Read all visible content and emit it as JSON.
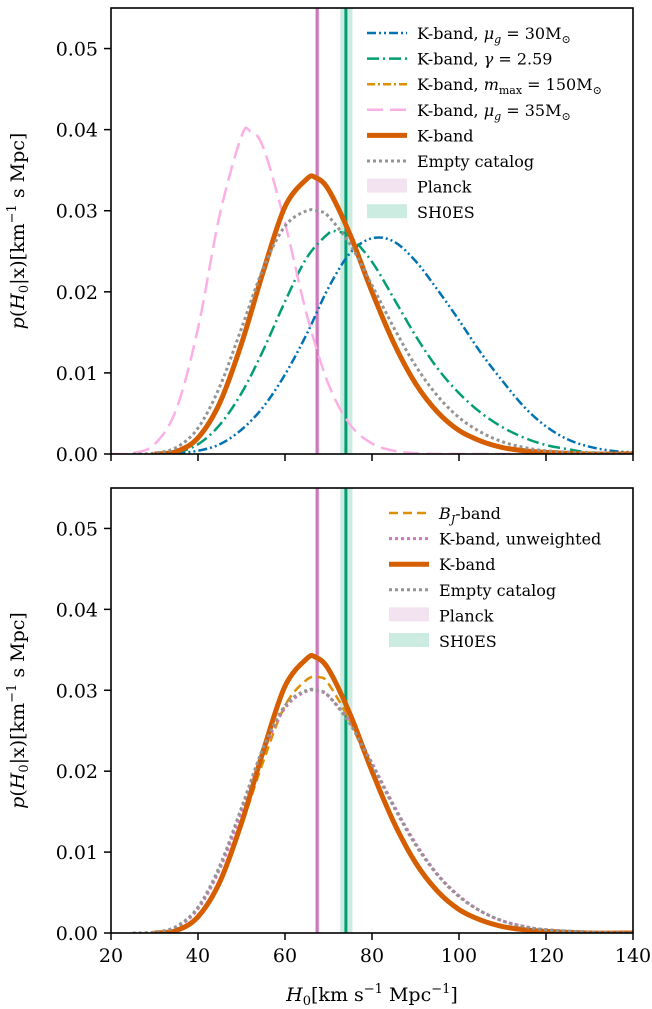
{
  "chart_data": [
    {
      "type": "line",
      "ylabel": "p(H₀|x)[km⁻¹ s Mpc]",
      "xlabel": "",
      "xlim": [
        20,
        140
      ],
      "ylim": [
        0,
        0.055
      ],
      "xticks": [
        20,
        40,
        60,
        80,
        100,
        120,
        140
      ],
      "show_xtick_labels": false,
      "yticks": [
        "0.00",
        "0.01",
        "0.02",
        "0.03",
        "0.04",
        "0.05"
      ],
      "grid": false,
      "legend_position": "top-right",
      "bands": [
        {
          "name": "Planck",
          "low": 66.9,
          "high": 67.9,
          "center": 67.4,
          "color": "#cc78bc",
          "band_color": "#f3e2ef"
        },
        {
          "name": "SH0ES",
          "low": 72.7,
          "high": 75.5,
          "center": 74.0,
          "color": "#029e73",
          "band_color": "#cdece1"
        }
      ],
      "series": [
        {
          "name": "K-band, μg = 30M⊙",
          "color": "#0173b2",
          "dash": "9 3 2 3 2 3",
          "width": 2.5,
          "x": [
            30,
            35,
            40,
            45,
            50,
            55,
            60,
            65,
            70,
            75,
            80,
            85,
            90,
            95,
            100,
            105,
            110,
            115,
            120,
            125,
            130,
            135,
            140
          ],
          "y": [
            0,
            0.0001,
            0.0004,
            0.0012,
            0.003,
            0.0058,
            0.0098,
            0.0148,
            0.0205,
            0.0248,
            0.0266,
            0.0262,
            0.0238,
            0.0203,
            0.0165,
            0.0125,
            0.009,
            0.0058,
            0.0034,
            0.0018,
            0.0009,
            0.0004,
            0.0002
          ]
        },
        {
          "name": "K-band, γ = 2.59",
          "color": "#029e73",
          "dash": "12 4 2 4",
          "width": 2.5,
          "x": [
            30,
            35,
            40,
            45,
            50,
            55,
            60,
            65,
            70,
            72,
            75,
            80,
            85,
            90,
            95,
            100,
            105,
            110,
            115,
            120,
            125,
            130,
            140
          ],
          "y": [
            0,
            0.0002,
            0.0012,
            0.0036,
            0.0075,
            0.0128,
            0.0188,
            0.0242,
            0.0272,
            0.0274,
            0.0268,
            0.0237,
            0.0192,
            0.0146,
            0.0106,
            0.0075,
            0.0051,
            0.0033,
            0.002,
            0.0011,
            0.0006,
            0.0002,
            0
          ]
        },
        {
          "name": "K-band, mmax = 150M⊙",
          "color": "#de8f05",
          "dash": "8 3 2 3",
          "width": 2.5,
          "x": [
            30,
            35,
            40,
            45,
            50,
            55,
            60,
            65,
            67,
            70,
            75,
            80,
            85,
            90,
            95,
            100,
            105,
            110,
            115,
            120,
            130,
            140
          ],
          "y": [
            0,
            0.0003,
            0.0019,
            0.0061,
            0.0134,
            0.0223,
            0.0302,
            0.0338,
            0.034,
            0.0326,
            0.0271,
            0.0201,
            0.0138,
            0.0088,
            0.0053,
            0.003,
            0.0016,
            0.0008,
            0.0004,
            0.0002,
            0,
            0
          ]
        },
        {
          "name": "K-band, μg = 35M⊙",
          "color": "#fbafe4",
          "dash": "16 7",
          "width": 2.5,
          "x": [
            20,
            25,
            30,
            35,
            40,
            45,
            50,
            52,
            55,
            60,
            65,
            70,
            75,
            80,
            85,
            90,
            95,
            100,
            110,
            120
          ],
          "y": [
            0,
            0.0001,
            0.0012,
            0.0055,
            0.0155,
            0.0295,
            0.0392,
            0.0398,
            0.0378,
            0.0285,
            0.0172,
            0.0086,
            0.0036,
            0.0013,
            0.0004,
            0.0001,
            0,
            0,
            0,
            0
          ]
        },
        {
          "name": "K-band",
          "color": "#d55e00",
          "dash": "",
          "width": 5,
          "x": [
            30,
            35,
            40,
            45,
            50,
            55,
            60,
            65,
            67,
            70,
            75,
            80,
            85,
            90,
            95,
            100,
            105,
            110,
            115,
            120,
            130,
            140
          ],
          "y": [
            0,
            0.0003,
            0.002,
            0.0063,
            0.0136,
            0.0225,
            0.0305,
            0.0339,
            0.0341,
            0.0326,
            0.027,
            0.02,
            0.0137,
            0.0087,
            0.0052,
            0.0029,
            0.0016,
            0.0008,
            0.0004,
            0.0002,
            0,
            0
          ]
        },
        {
          "name": "Empty catalog",
          "color": "#949494",
          "dash": "3 3",
          "width": 3,
          "x": [
            25,
            30,
            35,
            40,
            45,
            50,
            55,
            60,
            65,
            68,
            70,
            75,
            80,
            85,
            90,
            95,
            100,
            105,
            110,
            115,
            120,
            130,
            140
          ],
          "y": [
            0,
            0.0001,
            0.0008,
            0.0032,
            0.0083,
            0.0155,
            0.0229,
            0.0281,
            0.03,
            0.0299,
            0.0293,
            0.0258,
            0.0208,
            0.0156,
            0.0109,
            0.0072,
            0.0045,
            0.0027,
            0.0015,
            0.0008,
            0.0004,
            0.0001,
            0
          ]
        }
      ],
      "legend_labels": [
        {
          "prefix": "K-band, ",
          "math": "μ",
          "sub": "g",
          "suffix": " = 30M",
          "sub2": "⊙"
        },
        {
          "prefix": "K-band, ",
          "math": "γ",
          "sub": "",
          "suffix": " = 2.59",
          "sub2": ""
        },
        {
          "prefix": "K-band, ",
          "math": "m",
          "sub": "max",
          "suffix": " = 150M",
          "sub2": "⊙"
        },
        {
          "prefix": "K-band, ",
          "math": "μ",
          "sub": "g",
          "suffix": " = 35M",
          "sub2": "⊙"
        },
        {
          "prefix": "K-band",
          "math": "",
          "sub": "",
          "suffix": "",
          "sub2": ""
        },
        {
          "prefix": "Empty catalog",
          "math": "",
          "sub": "",
          "suffix": "",
          "sub2": ""
        },
        {
          "prefix": "Planck",
          "math": "",
          "sub": "",
          "suffix": "",
          "sub2": ""
        },
        {
          "prefix": "SH0ES",
          "math": "",
          "sub": "",
          "suffix": "",
          "sub2": ""
        }
      ]
    },
    {
      "type": "line",
      "ylabel": "p(H₀|x)[km⁻¹ s Mpc]",
      "xlabel": "H₀[km s⁻¹ Mpc⁻¹]",
      "xlim": [
        20,
        140
      ],
      "ylim": [
        0,
        0.055
      ],
      "xticks": [
        20,
        40,
        60,
        80,
        100,
        120,
        140
      ],
      "show_xtick_labels": true,
      "yticks": [
        "0.00",
        "0.01",
        "0.02",
        "0.03",
        "0.04",
        "0.05"
      ],
      "grid": false,
      "legend_position": "top-right",
      "bands": [
        {
          "name": "Planck",
          "low": 66.9,
          "high": 67.9,
          "center": 67.4,
          "color": "#cc78bc",
          "band_color": "#f3e2ef"
        },
        {
          "name": "SH0ES",
          "low": 72.7,
          "high": 75.5,
          "center": 74.0,
          "color": "#029e73",
          "band_color": "#cdece1"
        }
      ],
      "series": [
        {
          "name": "BJ-band",
          "color": "#de8f05",
          "dash": "9 5",
          "width": 2.5,
          "x": [
            30,
            35,
            40,
            45,
            50,
            55,
            60,
            65,
            68,
            70,
            75,
            80,
            85,
            90,
            95,
            100,
            105,
            110,
            115,
            120,
            130,
            140
          ],
          "y": [
            0,
            0.0003,
            0.0021,
            0.0065,
            0.0133,
            0.0212,
            0.0281,
            0.0313,
            0.0316,
            0.0308,
            0.0261,
            0.0198,
            0.0138,
            0.0089,
            0.0054,
            0.0031,
            0.0017,
            0.0009,
            0.0004,
            0.0002,
            0,
            0
          ]
        },
        {
          "name": "K-band, unweighted",
          "color": "#cc78bc",
          "dash": "3 3",
          "width": 3,
          "x": [
            25,
            30,
            35,
            40,
            45,
            50,
            55,
            60,
            65,
            68,
            70,
            75,
            80,
            85,
            90,
            95,
            100,
            105,
            110,
            115,
            120,
            130,
            140
          ],
          "y": [
            0,
            0.0001,
            0.0007,
            0.003,
            0.0079,
            0.015,
            0.0224,
            0.0278,
            0.0299,
            0.0298,
            0.0293,
            0.026,
            0.021,
            0.0158,
            0.0111,
            0.0073,
            0.0046,
            0.0027,
            0.0015,
            0.0008,
            0.0004,
            0.0001,
            0
          ]
        },
        {
          "name": "K-band",
          "color": "#d55e00",
          "dash": "",
          "width": 5,
          "x": [
            30,
            35,
            40,
            45,
            50,
            55,
            60,
            65,
            67,
            70,
            75,
            80,
            85,
            90,
            95,
            100,
            105,
            110,
            115,
            120,
            130,
            140
          ],
          "y": [
            0,
            0.0003,
            0.002,
            0.0063,
            0.0136,
            0.0225,
            0.0305,
            0.0339,
            0.0341,
            0.0326,
            0.027,
            0.02,
            0.0137,
            0.0087,
            0.0052,
            0.0029,
            0.0016,
            0.0008,
            0.0004,
            0.0002,
            0,
            0
          ]
        },
        {
          "name": "Empty catalog",
          "color": "#949494",
          "dash": "3 3",
          "width": 3,
          "x": [
            25,
            30,
            35,
            40,
            45,
            50,
            55,
            60,
            65,
            68,
            70,
            75,
            80,
            85,
            90,
            95,
            100,
            105,
            110,
            115,
            120,
            130,
            140
          ],
          "y": [
            0,
            0.0001,
            0.0008,
            0.0032,
            0.0083,
            0.0155,
            0.0229,
            0.0281,
            0.03,
            0.0299,
            0.0293,
            0.0258,
            0.0208,
            0.0156,
            0.0109,
            0.0072,
            0.0045,
            0.0027,
            0.0015,
            0.0008,
            0.0004,
            0.0001,
            0
          ]
        }
      ],
      "legend_labels": [
        {
          "prefix": "",
          "math": "B",
          "sub": "J",
          "suffix": "-band",
          "sub2": ""
        },
        {
          "prefix": "K-band, unweighted",
          "math": "",
          "sub": "",
          "suffix": "",
          "sub2": ""
        },
        {
          "prefix": "K-band",
          "math": "",
          "sub": "",
          "suffix": "",
          "sub2": ""
        },
        {
          "prefix": "Empty catalog",
          "math": "",
          "sub": "",
          "suffix": "",
          "sub2": ""
        },
        {
          "prefix": "Planck",
          "math": "",
          "sub": "",
          "suffix": "",
          "sub2": ""
        },
        {
          "prefix": "SH0ES",
          "math": "",
          "sub": "",
          "suffix": "",
          "sub2": ""
        }
      ]
    }
  ]
}
